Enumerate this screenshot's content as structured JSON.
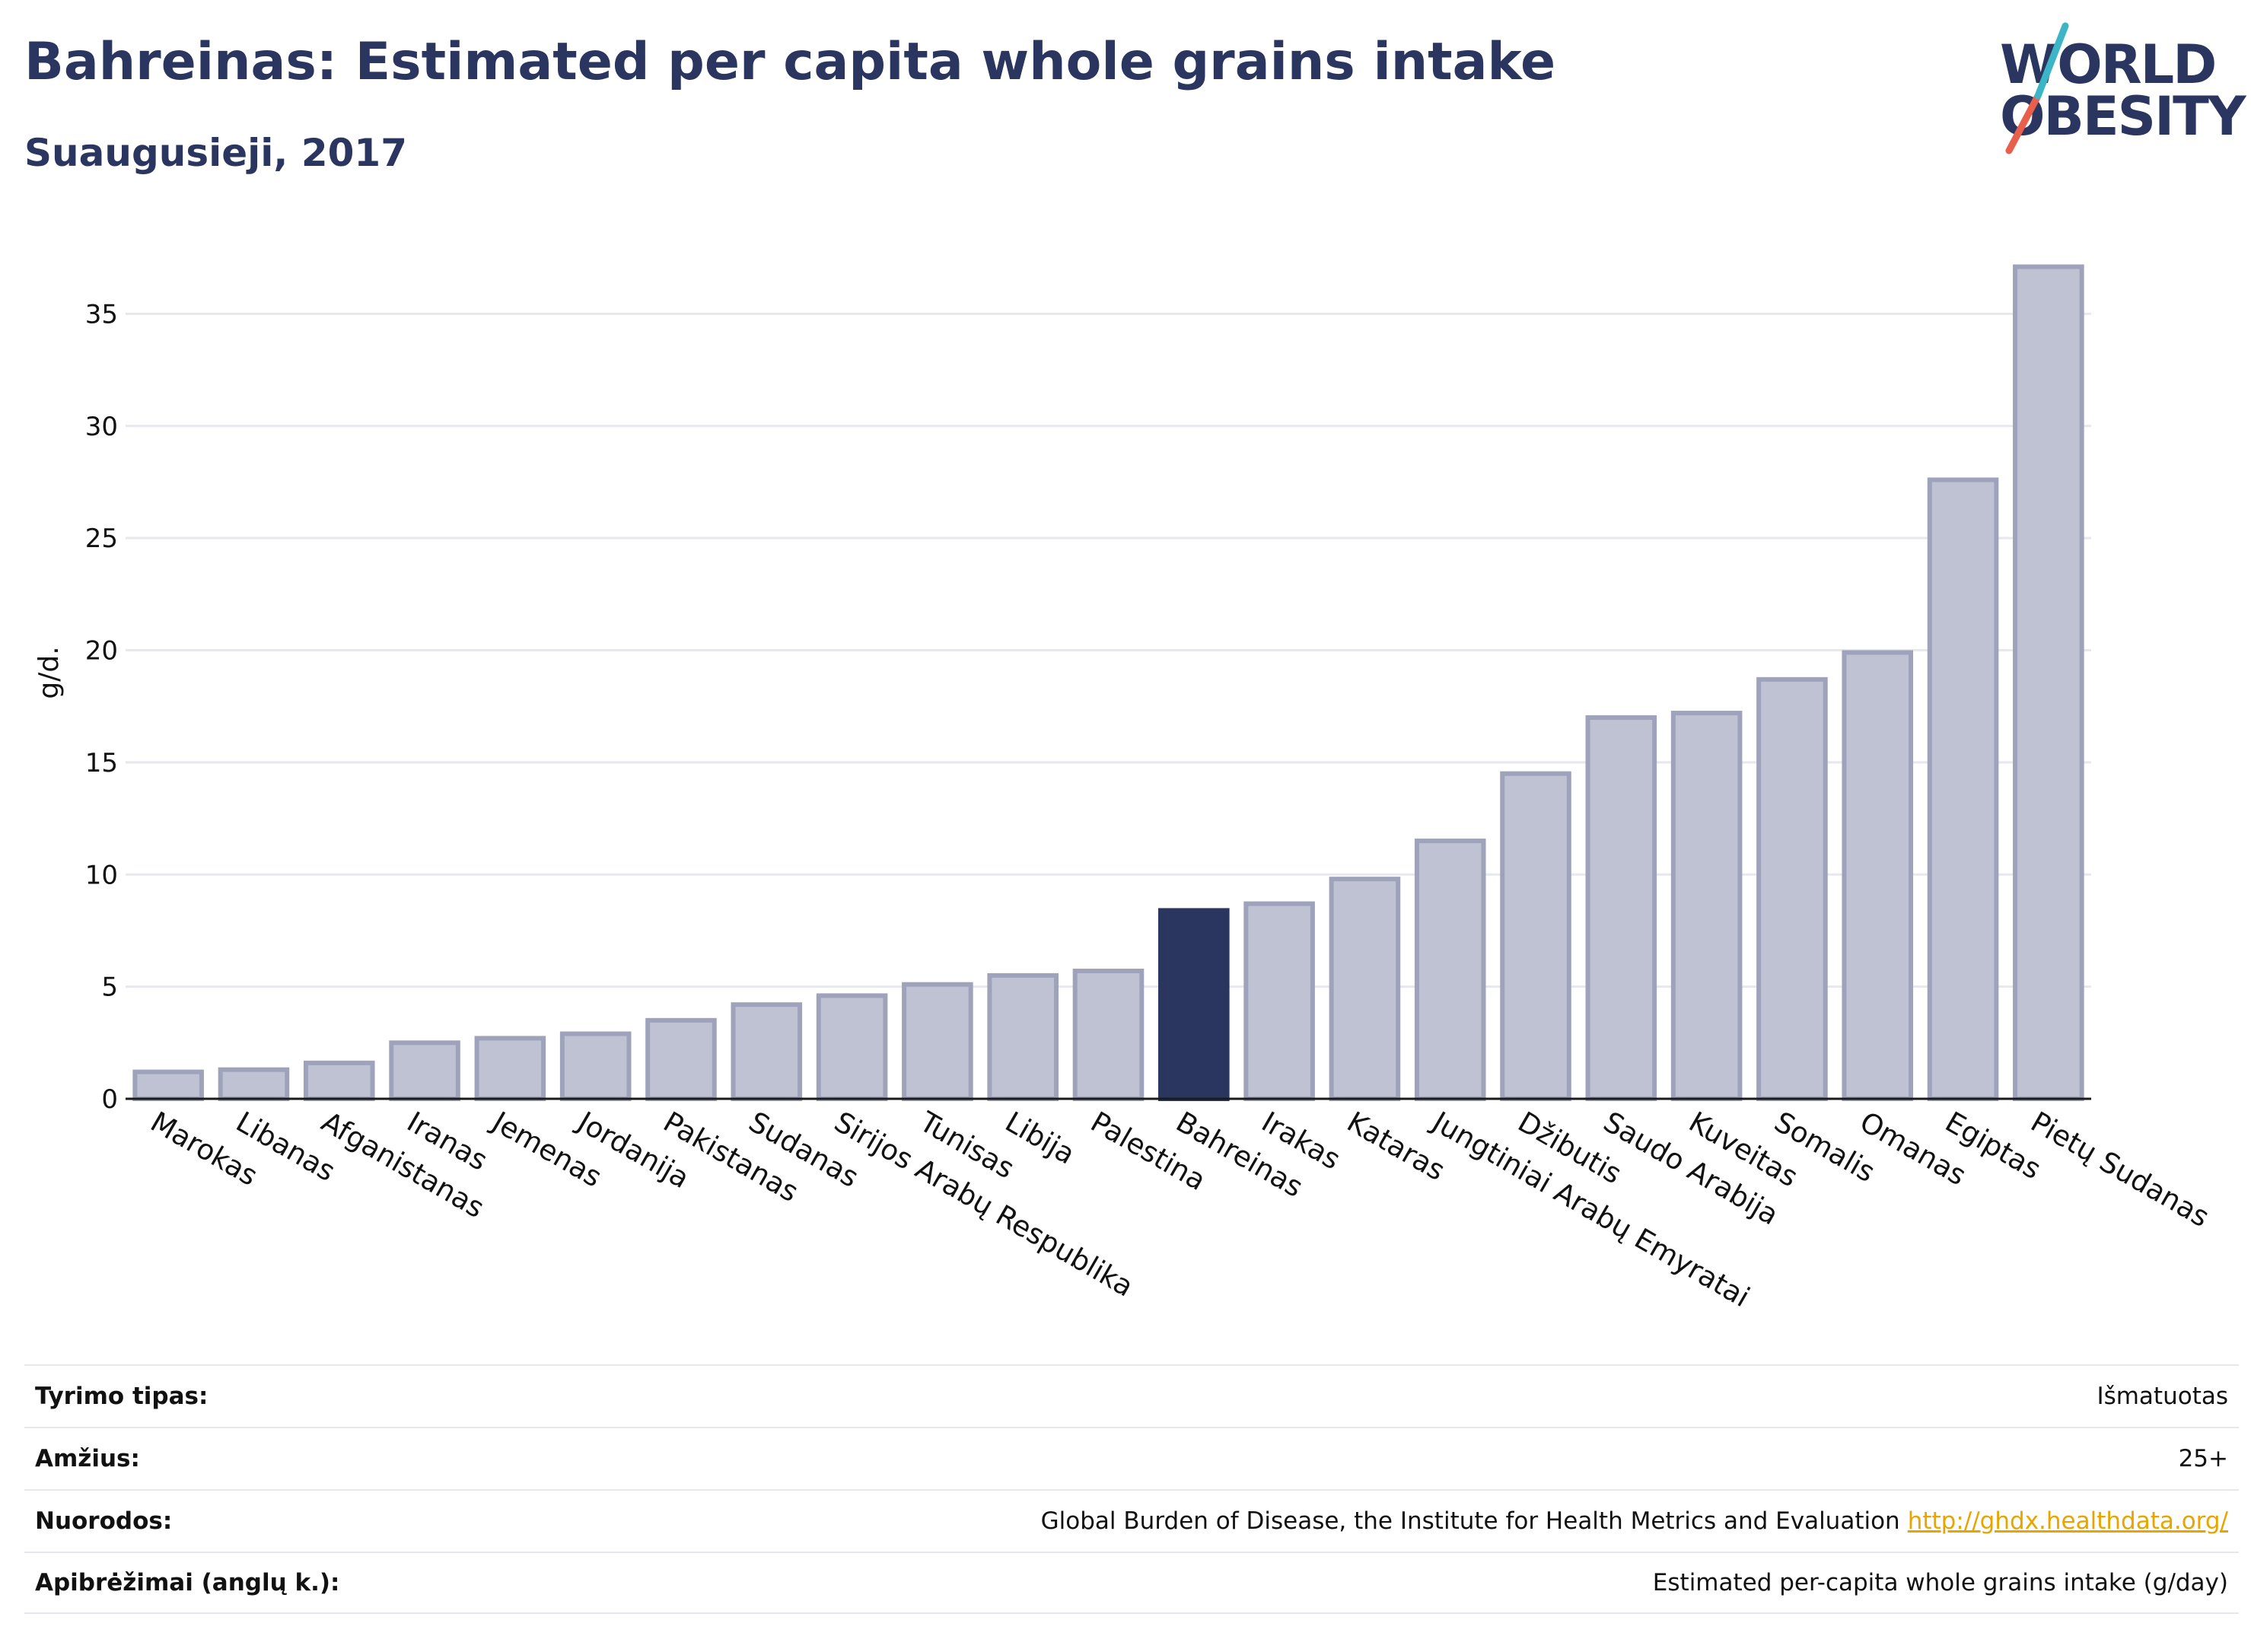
{
  "header": {
    "title": "Bahreinas: Estimated per capita whole grains intake",
    "subtitle": "Suaugusieji, 2017"
  },
  "logo": {
    "line1": "WORLD",
    "line2": "OBESITY"
  },
  "colors": {
    "accent": "#2a3560",
    "bar": "#bfc2d2",
    "bar_border": "#9ea3bb",
    "logo_teal": "#3cb6c6",
    "logo_red": "#e8604c",
    "link": "#e8a500"
  },
  "chart_data": {
    "type": "bar",
    "title": "Bahreinas: Estimated per capita whole grains intake",
    "subtitle": "Suaugusieji, 2017",
    "xlabel": "",
    "ylabel": "g/d.",
    "ylim": [
      0,
      38
    ],
    "yticks": [
      0,
      5,
      10,
      15,
      20,
      25,
      30,
      35
    ],
    "grid": true,
    "highlight": "Bahreinas",
    "categories": [
      "Marokas",
      "Libanas",
      "Afganistanas",
      "Iranas",
      "Jemenas",
      "Jordanija",
      "Pakistanas",
      "Sudanas",
      "Sirijos Arabų Respublika",
      "Tunisas",
      "Libija",
      "Palestina",
      "Bahreinas",
      "Irakas",
      "Kataras",
      "Jungtiniai Arabų Emyratai",
      "Džibutis",
      "Saudo Arabija",
      "Kuveitas",
      "Somalis",
      "Omanas",
      "Egiptas",
      "Pietų Sudanas"
    ],
    "values": [
      1.2,
      1.3,
      1.6,
      2.5,
      2.7,
      2.9,
      3.5,
      4.2,
      4.6,
      5.1,
      5.5,
      5.7,
      8.4,
      8.7,
      9.8,
      11.5,
      14.5,
      17.0,
      17.2,
      18.7,
      19.9,
      27.6,
      37.1
    ]
  },
  "info_table": [
    {
      "key": "Tyrimo tipas:",
      "value": "Išmatuotas"
    },
    {
      "key": "Amžius:",
      "value": "25+"
    },
    {
      "key": "Nuorodos:",
      "value": "Global Burden of Disease, the Institute for Health Metrics and Evaluation",
      "link": "http://ghdx.healthdata.org/"
    },
    {
      "key": "Apibrėžimai (anglų k.):",
      "value": "Estimated per-capita whole grains intake (g/day)"
    }
  ]
}
